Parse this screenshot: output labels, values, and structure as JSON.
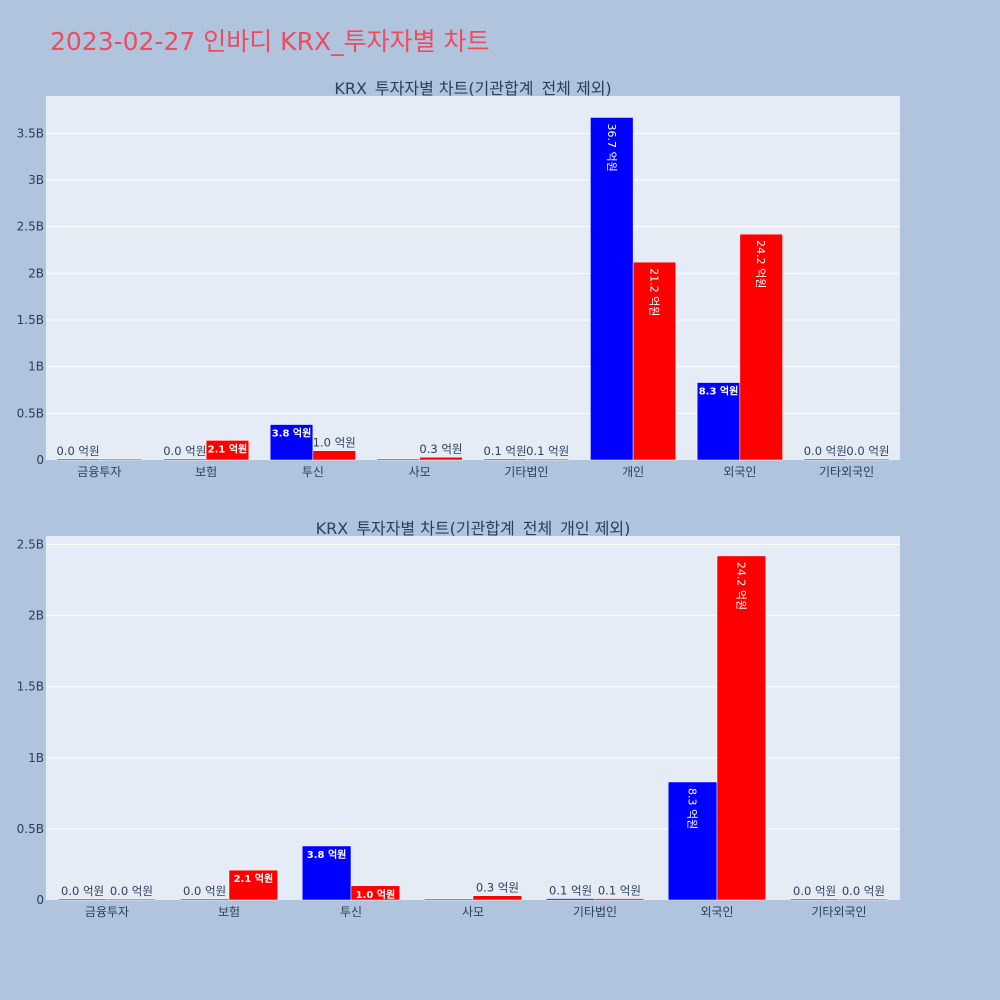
{
  "title": "2023-02-27 인바디 KRX_투자자별 차트",
  "colors": {
    "buy": "#0000ff",
    "sell": "#ff0000"
  },
  "chart_data": [
    {
      "type": "bar",
      "title": "KRX_투자자별 차트(기관합계_전체 제외)",
      "categories": [
        "금융투자",
        "보험",
        "투신",
        "사모",
        "기타법인",
        "개인",
        "외국인",
        "기타외국인"
      ],
      "series": [
        {
          "color": "#0000ff",
          "values": [
            0,
            0,
            380000000,
            0,
            10000000,
            3670000000,
            830000000,
            0
          ],
          "labels": [
            "0.0 억원",
            "0.0 억원",
            "3.8 억원",
            "",
            "0.1 억원",
            "36.7 억원",
            "8.3 억원",
            "0.0 억원"
          ]
        },
        {
          "color": "#ff0000",
          "values": [
            0,
            210000000,
            100000000,
            30000000,
            10000000,
            2120000000,
            2420000000,
            0
          ],
          "labels": [
            "",
            "2.1 억원",
            "1.0 억원",
            "0.3 억원",
            "0.1 억원",
            "21.2 억원",
            "24.2 억원",
            "0.0 억원"
          ]
        }
      ],
      "ylim": [
        0,
        3900000000
      ],
      "yticks": [
        0,
        500000000,
        1000000000,
        1500000000,
        2000000000,
        2500000000,
        3000000000,
        3500000000
      ],
      "ytick_labels": [
        "0",
        "0.5B",
        "1B",
        "1.5B",
        "2B",
        "2.5B",
        "3B",
        "3.5B"
      ],
      "grid": true
    },
    {
      "type": "bar",
      "title": "KRX_투자자별 차트(기관합계_전체_개인 제외)",
      "categories": [
        "금융투자",
        "보험",
        "투신",
        "사모",
        "기타법인",
        "외국인",
        "기타외국인"
      ],
      "series": [
        {
          "color": "#0000ff",
          "values": [
            0,
            0,
            380000000,
            0,
            10000000,
            830000000,
            0
          ],
          "labels": [
            "0.0 억원",
            "0.0 억원",
            "3.8 억원",
            "",
            "0.1 억원",
            "8.3 억원",
            "0.0 억원"
          ]
        },
        {
          "color": "#ff0000",
          "values": [
            0,
            210000000,
            100000000,
            30000000,
            10000000,
            2420000000,
            0
          ],
          "labels": [
            "0.0 억원",
            "2.1 억원",
            "1.0 억원",
            "0.3 억원",
            "0.1 억원",
            "24.2 억원",
            "0.0 억원"
          ]
        }
      ],
      "ylim": [
        0,
        2560000000
      ],
      "yticks": [
        0,
        500000000,
        1000000000,
        1500000000,
        2000000000,
        2500000000
      ],
      "ytick_labels": [
        "0",
        "0.5B",
        "1B",
        "1.5B",
        "2B",
        "2.5B"
      ],
      "grid": true
    }
  ]
}
